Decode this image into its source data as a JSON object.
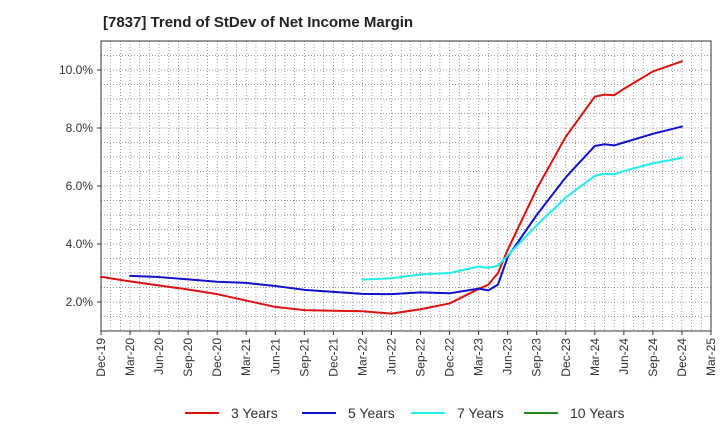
{
  "chart_data": {
    "type": "line",
    "title": "[7837]  Trend of StDev of Net Income Margin",
    "xlabel": "",
    "ylabel": "",
    "x_ticks": [
      "Dec-19",
      "Mar-20",
      "Jun-20",
      "Sep-20",
      "Dec-20",
      "Mar-21",
      "Jun-21",
      "Sep-21",
      "Dec-21",
      "Mar-22",
      "Jun-22",
      "Sep-22",
      "Dec-22",
      "Mar-23",
      "Jun-23",
      "Sep-23",
      "Dec-23",
      "Mar-24",
      "Jun-24",
      "Sep-24",
      "Dec-24",
      "Mar-25"
    ],
    "y_ticks": [
      {
        "value": 2.0,
        "label": "2.0%"
      },
      {
        "value": 4.0,
        "label": "4.0%"
      },
      {
        "value": 6.0,
        "label": "6.0%"
      },
      {
        "value": 8.0,
        "label": "8.0%"
      },
      {
        "value": 10.0,
        "label": "10.0%"
      }
    ],
    "ylim": [
      1.0,
      11.0
    ],
    "grid": true,
    "legend_position": "bottom",
    "series": [
      {
        "name": "3 Years",
        "color": "#dd1111",
        "points": [
          [
            "Dec-19",
            2.87
          ],
          [
            "Mar-20",
            2.71
          ],
          [
            "Jun-20",
            2.57
          ],
          [
            "Sep-20",
            2.43
          ],
          [
            "Dec-20",
            2.27
          ],
          [
            "Mar-21",
            2.05
          ],
          [
            "Jun-21",
            1.83
          ],
          [
            "Sep-21",
            1.72
          ],
          [
            "Dec-21",
            1.7
          ],
          [
            "Mar-22",
            1.68
          ],
          [
            "Jun-22",
            1.6
          ],
          [
            "Sep-22",
            1.75
          ],
          [
            "Dec-22",
            1.95
          ],
          [
            "Mar-23",
            2.45
          ],
          [
            "Apr-23",
            2.6
          ],
          [
            "May-23",
            3.0
          ],
          [
            "Jun-23",
            3.8
          ],
          [
            "Sep-23",
            5.9
          ],
          [
            "Dec-23",
            7.7
          ],
          [
            "Mar-24",
            9.08
          ],
          [
            "Apr-24",
            9.15
          ],
          [
            "May-24",
            9.13
          ],
          [
            "Jun-24",
            9.35
          ],
          [
            "Sep-24",
            9.95
          ],
          [
            "Dec-24",
            10.3
          ]
        ]
      },
      {
        "name": "5 Years",
        "color": "#1111cc",
        "points": [
          [
            "Mar-20",
            2.9
          ],
          [
            "Jun-20",
            2.86
          ],
          [
            "Sep-20",
            2.78
          ],
          [
            "Dec-20",
            2.7
          ],
          [
            "Mar-21",
            2.66
          ],
          [
            "Jun-21",
            2.55
          ],
          [
            "Sep-21",
            2.42
          ],
          [
            "Dec-21",
            2.35
          ],
          [
            "Mar-22",
            2.28
          ],
          [
            "Jun-22",
            2.27
          ],
          [
            "Sep-22",
            2.33
          ],
          [
            "Dec-22",
            2.3
          ],
          [
            "Mar-23",
            2.46
          ],
          [
            "Apr-23",
            2.4
          ],
          [
            "May-23",
            2.6
          ],
          [
            "Jun-23",
            3.55
          ],
          [
            "Sep-23",
            5.0
          ],
          [
            "Dec-23",
            6.3
          ],
          [
            "Mar-24",
            7.38
          ],
          [
            "Apr-24",
            7.44
          ],
          [
            "May-24",
            7.4
          ],
          [
            "Jun-24",
            7.5
          ],
          [
            "Sep-24",
            7.8
          ],
          [
            "Dec-24",
            8.05
          ]
        ]
      },
      {
        "name": "7 Years",
        "color": "#22eeee",
        "points": [
          [
            "Mar-22",
            2.77
          ],
          [
            "Jun-22",
            2.82
          ],
          [
            "Sep-22",
            2.95
          ],
          [
            "Dec-22",
            3.0
          ],
          [
            "Mar-23",
            3.22
          ],
          [
            "Apr-23",
            3.18
          ],
          [
            "May-23",
            3.25
          ],
          [
            "Jun-23",
            3.6
          ],
          [
            "Sep-23",
            4.65
          ],
          [
            "Dec-23",
            5.6
          ],
          [
            "Mar-24",
            6.35
          ],
          [
            "Apr-24",
            6.42
          ],
          [
            "May-24",
            6.4
          ],
          [
            "Jun-24",
            6.52
          ],
          [
            "Sep-24",
            6.78
          ],
          [
            "Dec-24",
            6.97
          ]
        ]
      },
      {
        "name": "10 Years",
        "color": "#228822",
        "points": []
      }
    ]
  }
}
